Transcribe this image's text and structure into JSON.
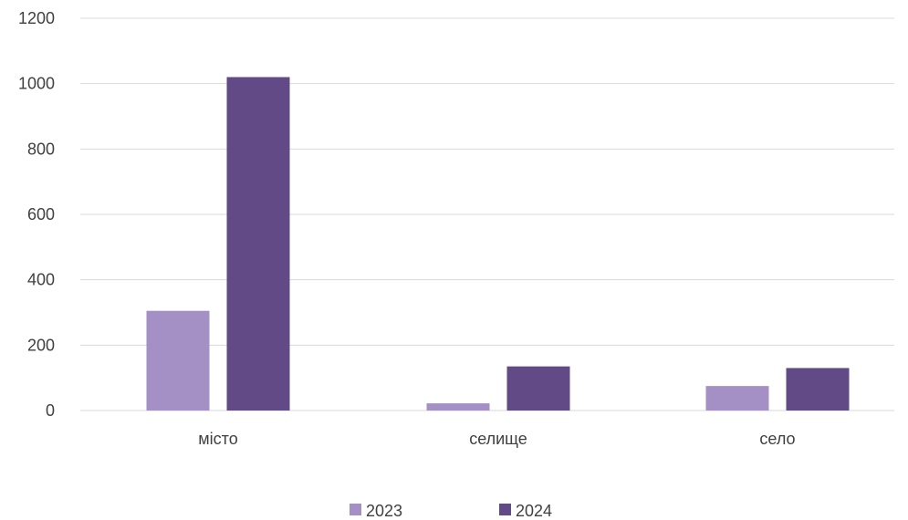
{
  "chart_data": {
    "type": "bar",
    "categories": [
      "місто",
      "селище",
      "село"
    ],
    "series": [
      {
        "name": "2023",
        "values": [
          305,
          22,
          75
        ],
        "color": "#a590c6"
      },
      {
        "name": "2024",
        "values": [
          1020,
          135,
          130
        ],
        "color": "#614a86"
      }
    ],
    "ylim": [
      0,
      1200
    ],
    "yticks": [
      0,
      200,
      400,
      600,
      800,
      1000,
      1200
    ],
    "grid": true,
    "legend_position": "bottom",
    "title": "",
    "xlabel": "",
    "ylabel": ""
  }
}
